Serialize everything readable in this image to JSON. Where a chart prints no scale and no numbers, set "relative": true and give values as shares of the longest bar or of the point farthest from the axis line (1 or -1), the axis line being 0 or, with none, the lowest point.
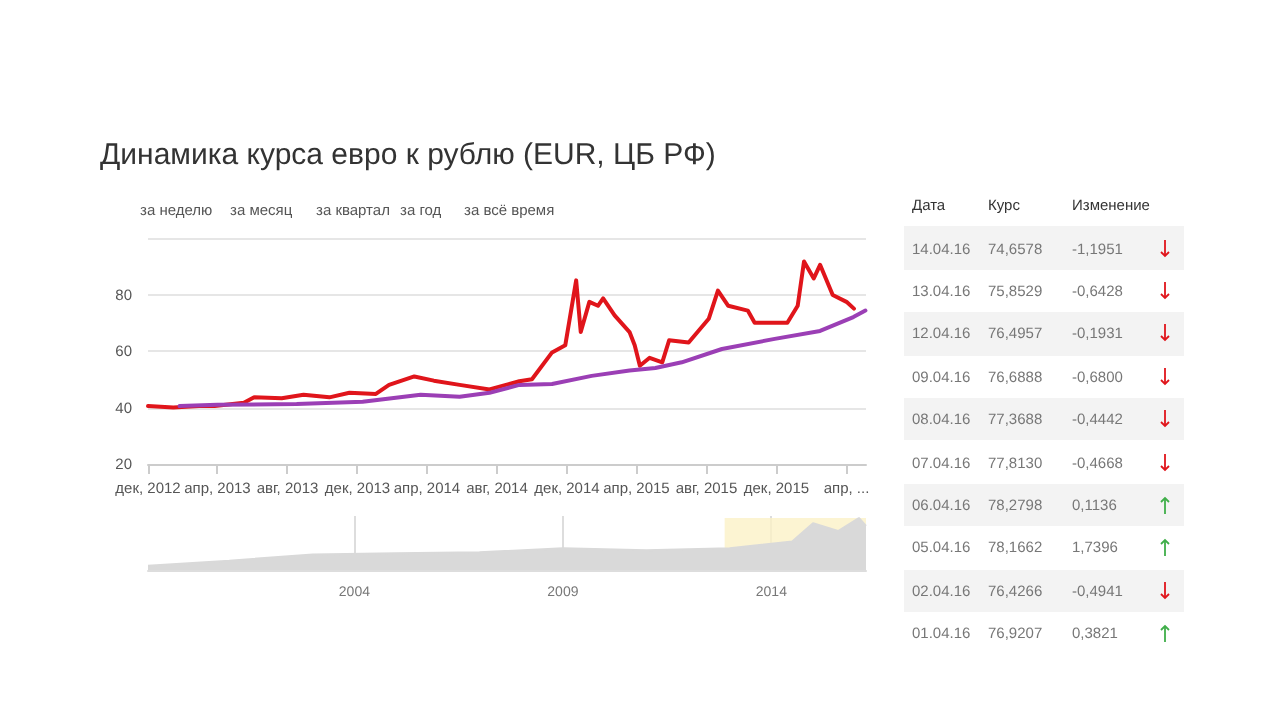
{
  "chart_data": [
    {
      "type": "line",
      "title": "Динамика курса евро к рублю (EUR, ЦБ РФ)",
      "annotations": [
        "за неделю",
        "за месяц",
        "за квартал",
        "за год",
        "за всё время"
      ],
      "xlim": [
        "2012-12-01",
        "2016-05-05"
      ],
      "xticks": [
        {
          "value": "2012-12-01",
          "label": "дек, 2012"
        },
        {
          "value": "2013-04-01",
          "label": "апр, 2013"
        },
        {
          "value": "2013-08-01",
          "label": "авг, 2013"
        },
        {
          "value": "2013-12-01",
          "label": "дек, 2013"
        },
        {
          "value": "2014-04-01",
          "label": "апр, 2014"
        },
        {
          "value": "2014-08-01",
          "label": "авг, 2014"
        },
        {
          "value": "2014-12-01",
          "label": "дек, 2014"
        },
        {
          "value": "2015-04-01",
          "label": "апр, 2015"
        },
        {
          "value": "2015-08-01",
          "label": "авг, 2015"
        },
        {
          "value": "2015-12-01",
          "label": "дек, 2015"
        },
        {
          "value": "2016-04-01",
          "label": "апр, ..."
        }
      ],
      "ylim": [
        20,
        100
      ],
      "yticks": [
        20,
        40,
        60,
        80,
        {
          "value": 100,
          "label": null
        }
      ],
      "grid": "y",
      "marker": "none",
      "line_style": "solid",
      "series": [
        {
          "color": "#e0151b",
          "x": [
            "2012-12-01",
            "2013-01-14",
            "2013-02-28",
            "2013-03-27",
            "2013-05-17",
            "2013-06-04",
            "2013-07-22",
            "2013-08-29",
            "2013-10-13",
            "2013-11-17",
            "2014-01-02",
            "2014-01-25",
            "2014-03-10",
            "2014-04-13",
            "2014-05-28",
            "2014-07-19",
            "2014-09-09",
            "2014-10-01",
            "2014-11-05",
            "2014-11-28",
            "2014-12-17",
            "2014-12-25",
            "2015-01-09",
            "2015-01-24",
            "2015-02-02",
            "2015-02-22",
            "2015-03-20",
            "2015-03-29",
            "2015-04-07",
            "2015-04-24",
            "2015-05-16",
            "2015-05-28",
            "2015-07-01",
            "2015-08-05",
            "2015-08-21",
            "2015-09-08",
            "2015-10-12",
            "2015-10-24",
            "2015-12-20",
            "2016-01-07",
            "2016-01-18",
            "2016-02-04",
            "2016-02-15",
            "2016-03-08",
            "2016-04-01",
            "2016-04-14"
          ],
          "values": [
            40.5,
            40,
            40.5,
            40.5,
            41.7,
            43.6,
            43.3,
            44.5,
            43.6,
            45.2,
            44.8,
            48,
            51,
            49.5,
            48,
            46.4,
            49.3,
            50,
            59.5,
            62,
            85,
            66.7,
            77.4,
            76,
            78.6,
            72.6,
            66.7,
            62,
            54.8,
            57.6,
            56,
            63.8,
            63,
            71.4,
            81.4,
            76,
            74.3,
            70,
            70,
            76,
            91.7,
            85.7,
            90.5,
            79.8,
            77.4,
            75
          ]
        },
        {
          "color": "#9b3fb5",
          "x": [
            "2013-01-25",
            "2013-04-01",
            "2013-08-17",
            "2013-12-10",
            "2014-03-21",
            "2014-05-28",
            "2014-07-19",
            "2014-09-09",
            "2014-11-05",
            "2015-01-13",
            "2015-03-20",
            "2015-05-04",
            "2015-06-19",
            "2015-08-28",
            "2015-11-28",
            "2016-02-15",
            "2016-04-13",
            "2016-05-04"
          ],
          "values": [
            40.5,
            41,
            41.2,
            42,
            44.5,
            43.8,
            45.2,
            48,
            48.3,
            51.2,
            53.1,
            54,
            56,
            60.7,
            64.3,
            67.1,
            72,
            74.3
          ]
        }
      ]
    },
    {
      "type": "area",
      "relative": true,
      "color": "#d9d9d9",
      "x": [
        1999.05,
        2001,
        2003,
        2005,
        2007,
        2009,
        2011,
        2013,
        2014.5,
        2015,
        2015.6,
        2016.1,
        2016.27
      ],
      "values": [
        0.08,
        0.18,
        0.3,
        0.32,
        0.34,
        0.42,
        0.38,
        0.42,
        0.55,
        0.9,
        0.75,
        1,
        0.85
      ],
      "xlim": [
        1999.05,
        2016.27
      ],
      "xticks": [
        2004,
        2009,
        2014
      ],
      "grid": "x",
      "bands": [
        {
          "axis": "x",
          "from": 2012.88,
          "to": 2016.27,
          "color": "#fbf1c7"
        }
      ]
    },
    {
      "type": "other",
      "annotations": [
        "Дата",
        "Курс",
        "Изменение",
        "14.04.16",
        "74,6578",
        "-1,1951",
        "13.04.16",
        "75,8529",
        "-0,6428",
        "12.04.16",
        "76,4957",
        "-0,1931",
        "09.04.16",
        "76,6888",
        "-0,6800",
        "08.04.16",
        "77,3688",
        "-0,4442",
        "07.04.16",
        "77,8130",
        "-0,4668",
        "06.04.16",
        "78,2798",
        "0,1136",
        "05.04.16",
        "78,1662",
        "1,7396",
        "02.04.16",
        "76,4266",
        "-0,4941",
        "01.04.16",
        "76,9207",
        "0,3821"
      ]
    }
  ]
}
